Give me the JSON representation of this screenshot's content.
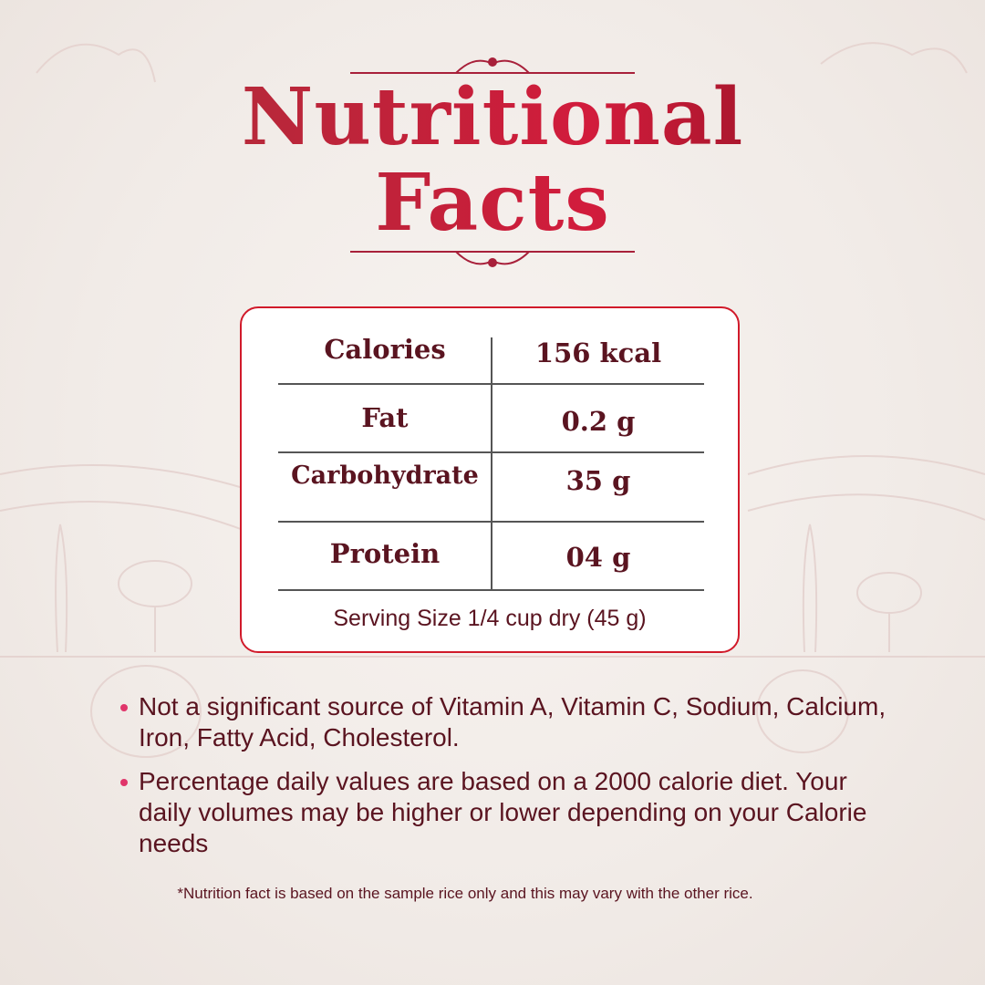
{
  "title": {
    "line1": "Nutritional",
    "line2": "Facts"
  },
  "colors": {
    "accent": "#d11a2a",
    "text": "#5a1420",
    "bullet": "#e0356a"
  },
  "table": {
    "rows": [
      {
        "label": "Calories",
        "value": "156 kcal"
      },
      {
        "label": "Fat",
        "value": "0.2 g"
      },
      {
        "label": "Carbohydrate",
        "value": "35 g"
      },
      {
        "label": "Protein",
        "value": "04 g"
      }
    ],
    "serving": "Serving Size 1/4 cup dry (45 g)"
  },
  "notes": [
    "Not a significant source of Vitamin A, Vitamin C, Sodium, Calcium, Iron,  Fatty Acid, Cholesterol.",
    "Percentage daily values are based on a 2000 calorie diet. Your daily volumes may be higher or lower depending on your Calorie needs"
  ],
  "footnote": "*Nutrition fact is based on the sample rice only and this may vary with the other rice."
}
